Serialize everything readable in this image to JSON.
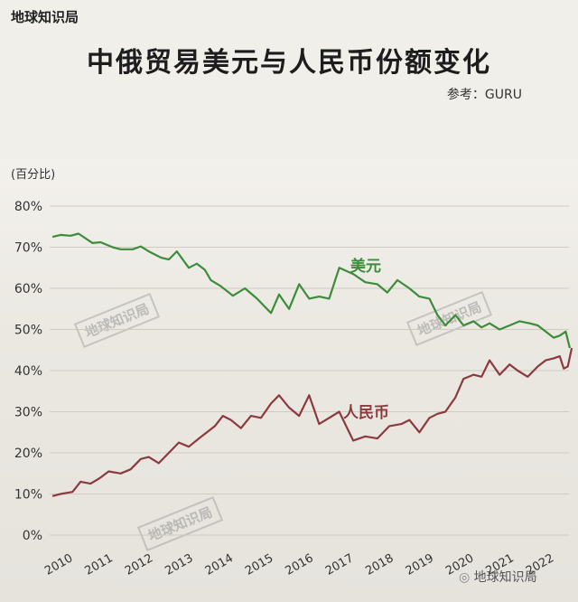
{
  "brand": "地球知识局",
  "wechat_label": "地球知识局",
  "chart_data": {
    "type": "line",
    "title": "中俄贸易美元与人民币份额变化",
    "source": "参考：GURU",
    "ylabel": "(百分比)",
    "ylim": [
      0,
      80
    ],
    "yticks": [
      "0%",
      "10%",
      "20%",
      "30%",
      "40%",
      "50%",
      "60%",
      "70%",
      "80%"
    ],
    "xlim": [
      2009.8,
      2022.75
    ],
    "xticks": [
      "2010",
      "2011",
      "2012",
      "2013",
      "2014",
      "2015",
      "2016",
      "2017",
      "2018",
      "2019",
      "2020",
      "2021",
      "2022"
    ],
    "grid": true,
    "series": [
      {
        "name": "美元",
        "color": "#3d8c3a",
        "x": [
          2009.8,
          2010.0,
          2010.25,
          2010.45,
          2010.8,
          2011.0,
          2011.3,
          2011.5,
          2011.8,
          2012.0,
          2012.2,
          2012.5,
          2012.7,
          2012.9,
          2013.2,
          2013.4,
          2013.6,
          2013.75,
          2014.0,
          2014.3,
          2014.6,
          2014.9,
          2015.1,
          2015.25,
          2015.45,
          2015.7,
          2015.95,
          2016.2,
          2016.45,
          2016.7,
          2016.95,
          2017.3,
          2017.6,
          2017.9,
          2018.15,
          2018.4,
          2018.7,
          2018.95,
          2019.2,
          2019.4,
          2019.6,
          2019.85,
          2020.05,
          2020.3,
          2020.5,
          2020.7,
          2020.95,
          2021.2,
          2021.45,
          2021.7,
          2021.9,
          2022.1,
          2022.3,
          2022.45,
          2022.6,
          2022.7
        ],
        "values": [
          72.5,
          73.0,
          72.8,
          73.3,
          71.0,
          71.2,
          70.0,
          69.5,
          69.5,
          70.2,
          69.0,
          67.5,
          67.0,
          69.0,
          65.0,
          66.0,
          64.5,
          62.0,
          60.5,
          58.2,
          60.0,
          57.5,
          55.5,
          54.0,
          58.5,
          55.0,
          61.0,
          57.5,
          58.0,
          57.5,
          65.0,
          63.5,
          61.5,
          61.0,
          59.0,
          62.0,
          60.0,
          58.0,
          57.5,
          53.5,
          51.0,
          53.5,
          51.0,
          52.0,
          50.5,
          51.5,
          50.0,
          51.0,
          52.0,
          51.5,
          51.0,
          49.5,
          48.0,
          48.5,
          49.5,
          45.5
        ]
      },
      {
        "name": "人民币",
        "color": "#8c3a3e",
        "x": [
          2009.8,
          2010.0,
          2010.3,
          2010.5,
          2010.75,
          2011.0,
          2011.2,
          2011.5,
          2011.75,
          2012.0,
          2012.2,
          2012.45,
          2012.7,
          2012.95,
          2013.2,
          2013.45,
          2013.65,
          2013.85,
          2014.05,
          2014.25,
          2014.5,
          2014.75,
          2015.0,
          2015.25,
          2015.45,
          2015.7,
          2015.95,
          2016.2,
          2016.45,
          2016.7,
          2016.95,
          2017.3,
          2017.6,
          2017.9,
          2018.2,
          2018.5,
          2018.7,
          2018.95,
          2019.2,
          2019.4,
          2019.6,
          2019.85,
          2020.05,
          2020.3,
          2020.5,
          2020.7,
          2020.95,
          2021.2,
          2021.4,
          2021.65,
          2021.9,
          2022.1,
          2022.3,
          2022.45,
          2022.55,
          2022.65,
          2022.75
        ],
        "values": [
          9.5,
          10.0,
          10.5,
          13.0,
          12.5,
          14.0,
          15.5,
          15.0,
          16.0,
          18.5,
          19.0,
          17.5,
          20.0,
          22.5,
          21.5,
          23.5,
          25.0,
          26.5,
          29.0,
          28.0,
          26.0,
          29.0,
          28.5,
          32.0,
          34.0,
          31.0,
          29.0,
          34.0,
          27.0,
          28.5,
          30.0,
          23.0,
          24.0,
          23.5,
          26.5,
          27.0,
          28.0,
          25.0,
          28.5,
          29.5,
          30.0,
          33.5,
          38.0,
          39.0,
          38.5,
          42.5,
          39.0,
          41.5,
          40.0,
          38.5,
          41.0,
          42.5,
          43.0,
          43.5,
          40.5,
          41.0,
          45.5
        ]
      }
    ]
  }
}
